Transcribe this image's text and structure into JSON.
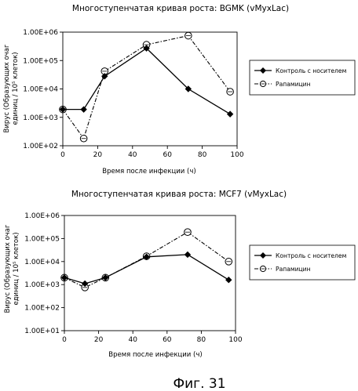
{
  "figure_label": "Фиг. 31",
  "chart_data": [
    {
      "type": "line",
      "title": "Многоступенчатая кривая роста: BGMK (vMyxLac)",
      "xlabel": "Время после инфекции (ч)",
      "ylabel": "Вирус (Образующих очаг единиц / 10⁵ клеток)",
      "ylabel_line1": "Вирус (Образующих очаг",
      "ylabel_line2": "единиц / 10⁵ клеток)",
      "x_scale": "linear",
      "y_scale": "log",
      "xlim": [
        0,
        100
      ],
      "ylim": [
        100,
        1000000
      ],
      "x_ticks": [
        "0",
        "20",
        "40",
        "60",
        "80",
        "100"
      ],
      "y_ticks": [
        "1.00E+02",
        "1.00E+03",
        "1.00E+04",
        "1.00E+05",
        "1.00E+06"
      ],
      "legend_position": "right",
      "series": [
        {
          "name": "Контроль с носителем",
          "style": "solid",
          "marker": "diamond",
          "x": [
            0,
            12,
            24,
            48,
            72,
            96
          ],
          "y": [
            1900,
            1900,
            28000,
            270000,
            10000,
            1300
          ]
        },
        {
          "name": "Рапамицин",
          "style": "dash-dot",
          "marker": "open-circle",
          "x": [
            0,
            12,
            24,
            48,
            72,
            96
          ],
          "y": [
            1900,
            180,
            42000,
            360000,
            750000,
            8000
          ]
        }
      ]
    },
    {
      "type": "line",
      "title": "Многоступенчатая кривая роста: MCF7 (vMyxLac)",
      "xlabel": "Время после инфекции (ч)",
      "ylabel": "Вирус (Образующих очаг единиц / 10⁵ клеток)",
      "ylabel_line1": "Вирус (Образующих очаг",
      "ylabel_line2": "единиц / 10⁵ клеток)",
      "x_scale": "linear",
      "y_scale": "log",
      "xlim": [
        0,
        100
      ],
      "ylim": [
        10,
        1000000
      ],
      "x_ticks": [
        "0",
        "20",
        "40",
        "60",
        "80",
        "100"
      ],
      "y_ticks": [
        "1.00E+01",
        "1.00E+02",
        "1.00E+03",
        "1.00E+04",
        "1.00E+05",
        "1.00E+06"
      ],
      "legend_position": "right",
      "series": [
        {
          "name": "Контроль с носителем",
          "style": "solid",
          "marker": "diamond",
          "x": [
            0,
            12,
            24,
            48,
            72,
            96
          ],
          "y": [
            2000,
            1100,
            2000,
            16000,
            20000,
            1600
          ]
        },
        {
          "name": "Рапамицин",
          "style": "dash-dot",
          "marker": "open-circle",
          "x": [
            0,
            12,
            24,
            48,
            72,
            96
          ],
          "y": [
            2000,
            750,
            2000,
            17000,
            190000,
            10000
          ]
        }
      ]
    }
  ]
}
